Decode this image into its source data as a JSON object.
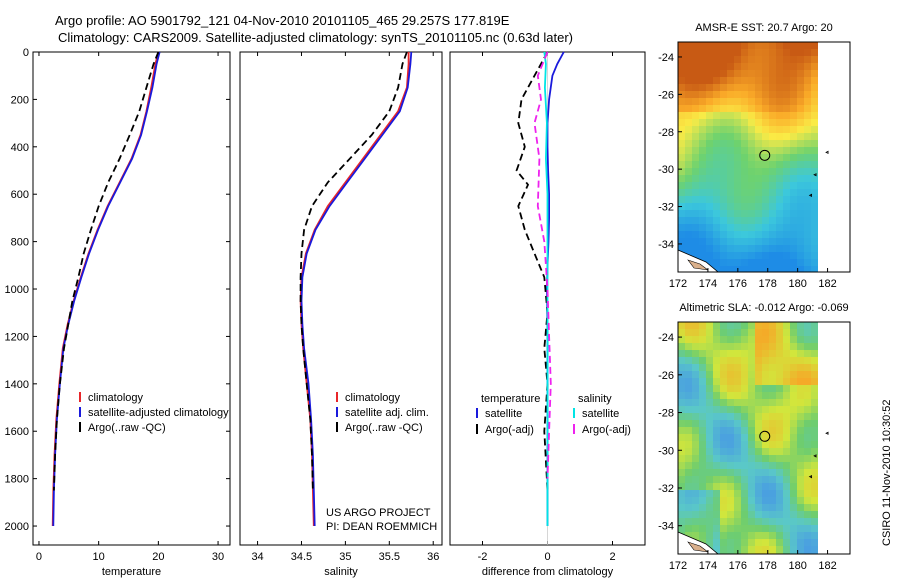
{
  "header": {
    "line1": "Argo profile: AO 5901792_121 04-Nov-2010 20101105_465 29.257S 177.819E",
    "line2": "Climatology: CARS2009. Satellite-adjusted climatology: synTS_20101105.nc (0.63d later)"
  },
  "credit": "CSIRO 11-Nov-2010 10:30:52",
  "project": {
    "line1": "US ARGO PROJECT",
    "line2": "PI: DEAN ROEMMICH"
  },
  "colors": {
    "climatology": "#e8262a",
    "satellite": "#1a1adc",
    "argo": "#000000",
    "sat_salinity": "#00e5e5",
    "argo_salinity": "#ee22ee"
  },
  "chart_data": [
    {
      "type": "line",
      "xlabel": "temperature",
      "ylabel": "",
      "xlim": [
        -1,
        32
      ],
      "ylim": [
        2080,
        0
      ],
      "y_reversed": true,
      "xticks": [
        0,
        10,
        20,
        30
      ],
      "yticks": [
        0,
        200,
        400,
        600,
        800,
        1000,
        1200,
        1400,
        1600,
        1800,
        2000
      ],
      "legend": [
        "climatology",
        "satellite-adjusted climatology",
        "Argo(..raw -QC)"
      ],
      "series": [
        {
          "name": "climatology",
          "color": "#e8262a",
          "dash": false,
          "x": [
            20.0,
            19.5,
            18.8,
            18.0,
            17.0,
            15.5,
            13.5,
            11.5,
            9.8,
            8.3,
            7.0,
            5.8,
            4.8,
            4.0,
            3.4,
            2.9,
            2.6,
            2.4,
            2.3
          ],
          "y": [
            0,
            50,
            150,
            250,
            350,
            450,
            550,
            650,
            750,
            850,
            950,
            1050,
            1150,
            1250,
            1400,
            1550,
            1700,
            1850,
            2000
          ]
        },
        {
          "name": "satellite-adjusted climatology",
          "color": "#1a1adc",
          "dash": false,
          "x": [
            20.2,
            19.7,
            19.0,
            18.1,
            17.1,
            15.6,
            13.6,
            11.6,
            9.9,
            8.4,
            7.1,
            5.9,
            4.9,
            4.1,
            3.5,
            3.0,
            2.7,
            2.5,
            2.4
          ],
          "y": [
            0,
            50,
            150,
            250,
            350,
            450,
            550,
            650,
            750,
            850,
            950,
            1050,
            1150,
            1250,
            1400,
            1550,
            1700,
            1850,
            2000
          ]
        },
        {
          "name": "Argo(..raw -QC)",
          "color": "#000000",
          "dash": true,
          "x": [
            20.0,
            19.2,
            18.0,
            16.8,
            15.2,
            13.5,
            11.6,
            10.0,
            8.7,
            7.5,
            6.6,
            5.6,
            4.9,
            4.2,
            3.5,
            3.0,
            2.7,
            2.5
          ],
          "y": [
            0,
            50,
            150,
            250,
            350,
            450,
            550,
            650,
            750,
            850,
            950,
            1050,
            1150,
            1250,
            1400,
            1550,
            1700,
            1850
          ]
        }
      ]
    },
    {
      "type": "line",
      "xlabel": "salinity",
      "ylabel": "",
      "xlim": [
        33.8,
        36.1
      ],
      "ylim": [
        2080,
        0
      ],
      "y_reversed": true,
      "xticks": [
        34,
        34.5,
        35,
        35.5,
        36
      ],
      "yticks": [],
      "legend": [
        "climatology",
        "satellite adj. clim.",
        "Argo(..raw -QC)"
      ],
      "series": [
        {
          "name": "climatology",
          "color": "#e8262a",
          "dash": false,
          "x": [
            35.72,
            35.72,
            35.7,
            35.6,
            35.4,
            35.2,
            35.0,
            34.8,
            34.65,
            34.55,
            34.5,
            34.49,
            34.5,
            34.52,
            34.56,
            34.6,
            34.62,
            34.63,
            34.64
          ],
          "y": [
            0,
            50,
            150,
            250,
            350,
            450,
            550,
            650,
            750,
            850,
            950,
            1050,
            1150,
            1250,
            1400,
            1550,
            1700,
            1850,
            2000
          ]
        },
        {
          "name": "satellite adj. clim.",
          "color": "#1a1adc",
          "dash": false,
          "x": [
            35.75,
            35.74,
            35.71,
            35.62,
            35.42,
            35.22,
            35.02,
            34.82,
            34.66,
            34.56,
            34.51,
            34.5,
            34.51,
            34.53,
            34.58,
            34.61,
            34.63,
            34.64,
            34.65
          ],
          "y": [
            0,
            50,
            150,
            250,
            350,
            450,
            550,
            650,
            750,
            850,
            950,
            1050,
            1150,
            1250,
            1400,
            1550,
            1700,
            1850,
            2000
          ]
        },
        {
          "name": "Argo(..raw -QC)",
          "color": "#000000",
          "dash": true,
          "x": [
            35.7,
            35.65,
            35.6,
            35.5,
            35.3,
            35.05,
            34.8,
            34.62,
            34.53,
            34.5,
            34.49,
            34.49,
            34.5,
            34.52,
            34.56,
            34.6,
            34.62,
            34.63
          ],
          "y": [
            0,
            50,
            150,
            250,
            350,
            450,
            550,
            650,
            750,
            850,
            950,
            1050,
            1150,
            1250,
            1400,
            1550,
            1700,
            1850
          ]
        }
      ]
    },
    {
      "type": "line",
      "xlabel": "difference from climatology",
      "ylabel": "",
      "xlim": [
        -3,
        3
      ],
      "ylim": [
        2080,
        0
      ],
      "y_reversed": true,
      "xticks": [
        -2,
        0,
        2
      ],
      "yticks": [],
      "legend_groups": [
        {
          "title": "temperature",
          "items": [
            "satellite",
            "Argo(-adj)"
          ]
        },
        {
          "title": "salinity",
          "items": [
            "satellite",
            "Argo(-adj)"
          ]
        }
      ],
      "series": [
        {
          "name": "satellite",
          "group": "temperature",
          "color": "#1a1adc",
          "dash": false,
          "x": [
            0.5,
            0.3,
            0.15,
            0.05,
            0.0,
            0.0,
            0.02,
            0.05,
            0.05,
            0.03,
            0.0,
            -0.02,
            0.0,
            0.0,
            0.0,
            0.0,
            0.0
          ],
          "y": [
            0,
            50,
            100,
            200,
            300,
            400,
            500,
            600,
            700,
            800,
            900,
            1000,
            1200,
            1400,
            1600,
            1800,
            2000
          ]
        },
        {
          "name": "Argo(-adj)",
          "group": "temperature",
          "color": "#000000",
          "dash": true,
          "x": [
            0.0,
            -0.4,
            -0.8,
            -0.9,
            -0.7,
            -0.95,
            -0.6,
            -0.9,
            -0.7,
            -0.4,
            -0.1,
            0.0,
            -0.1,
            0.0,
            -0.1,
            0.0
          ],
          "y": [
            0,
            100,
            200,
            300,
            400,
            500,
            560,
            650,
            750,
            850,
            950,
            1100,
            1250,
            1400,
            1600,
            1850
          ]
        },
        {
          "name": "satellite",
          "group": "salinity",
          "color": "#00e5e5",
          "dash": false,
          "x": [
            -0.1,
            -0.05,
            -0.08,
            -0.02,
            -0.05,
            0.0,
            0.0,
            0.0,
            0.0,
            0.0,
            0.0,
            0.0,
            0.0
          ],
          "y": [
            0,
            50,
            150,
            300,
            450,
            600,
            800,
            1000,
            1200,
            1400,
            1600,
            1800,
            2000
          ]
        },
        {
          "name": "Argo(-adj)",
          "group": "salinity",
          "color": "#ee22ee",
          "dash": true,
          "x": [
            0.0,
            -0.3,
            -0.2,
            -0.4,
            -0.25,
            -0.3,
            -0.1,
            0.0,
            0.05,
            0.1,
            0.05,
            0.0
          ],
          "y": [
            0,
            100,
            200,
            300,
            450,
            650,
            800,
            1000,
            1200,
            1400,
            1600,
            1800
          ]
        }
      ]
    },
    {
      "type": "heatmap",
      "title": "AMSR-E SST: 20.7 Argo: 20",
      "xlim": [
        172,
        183.5
      ],
      "ylim": [
        -35.5,
        -23.2
      ],
      "xticks": [
        172,
        174,
        176,
        178,
        180,
        182
      ],
      "yticks": [
        -24,
        -26,
        -28,
        -30,
        -32,
        -34
      ],
      "float_position": [
        177.8,
        -29.26
      ]
    },
    {
      "type": "heatmap",
      "title": "Altimetric SLA: -0.012 Argo: -0.069",
      "xlim": [
        172,
        183.5
      ],
      "ylim": [
        -35.5,
        -23.2
      ],
      "xticks": [
        172,
        174,
        176,
        178,
        180,
        182
      ],
      "yticks": [
        -24,
        -26,
        -28,
        -30,
        -32,
        -34
      ],
      "float_position": [
        177.8,
        -29.26
      ]
    }
  ]
}
